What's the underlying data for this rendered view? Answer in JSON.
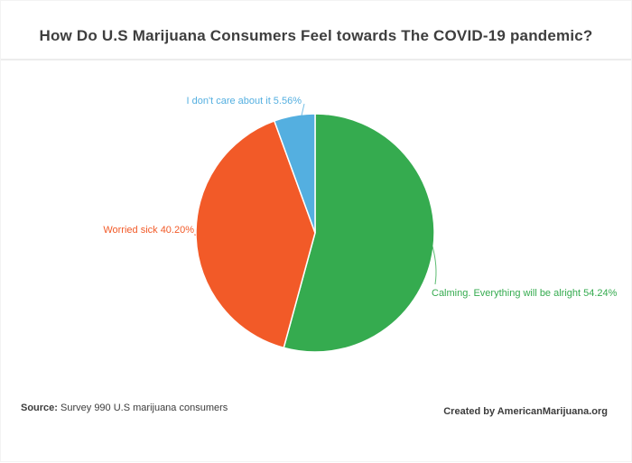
{
  "title": "How Do U.S Marijuana Consumers Feel towards The COVID-19 pandemic?",
  "chart_data": {
    "type": "pie",
    "title": "How Do U.S Marijuana Consumers Feel towards The COVID-19 pandemic?",
    "direction": "clockwise",
    "start_angle_deg": 0,
    "legend": "none",
    "slices": [
      {
        "label": "Calming. Everything will be alright",
        "value": 54.24,
        "display": "Calming. Everything will be alright 54.24%",
        "color": "#35ab4f"
      },
      {
        "label": "Worried sick",
        "value": 40.2,
        "display": "Worried sick 40.20%",
        "color": "#f25a28"
      },
      {
        "label": "I don't care about it",
        "value": 5.56,
        "display": "I don't care about it 5.56%",
        "color": "#54afe0"
      }
    ]
  },
  "footer": {
    "source_label": "Source:",
    "source_text": " Survey 990 U.S marijuana consumers",
    "credit": "Created by AmericanMarijuana.org"
  }
}
